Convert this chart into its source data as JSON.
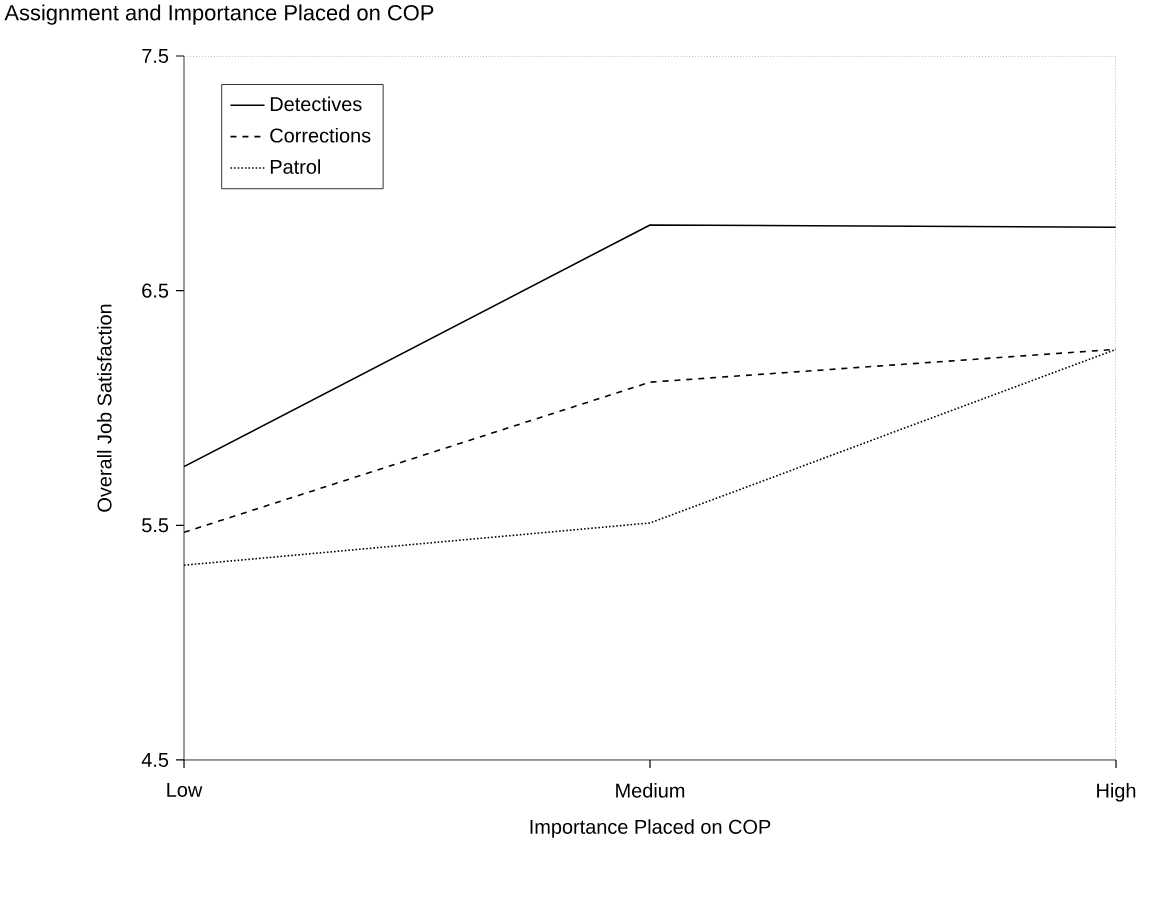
{
  "chart_data": {
    "type": "line",
    "title": "Assignment and Importance Placed on COP",
    "xlabel": "Importance Placed on COP",
    "ylabel": "Overall Job Satisfaction",
    "categories": [
      "Low",
      "Medium",
      "High"
    ],
    "series": [
      {
        "name": "Detectives",
        "color": "#000000",
        "line_style": "solid",
        "values": [
          5.75,
          6.78,
          6.77
        ]
      },
      {
        "name": "Corrections",
        "color": "#000000",
        "line_style": "dashed",
        "values": [
          5.47,
          6.11,
          6.25
        ]
      },
      {
        "name": "Patrol",
        "color": "#000000",
        "line_style": "dotted",
        "values": [
          5.33,
          5.51,
          6.25
        ]
      }
    ],
    "ylim": [
      4.5,
      7.5
    ],
    "yticks": [
      4.5,
      5.5,
      6.5,
      7.5
    ],
    "grid": false,
    "legend": "top left",
    "marker": "none"
  }
}
